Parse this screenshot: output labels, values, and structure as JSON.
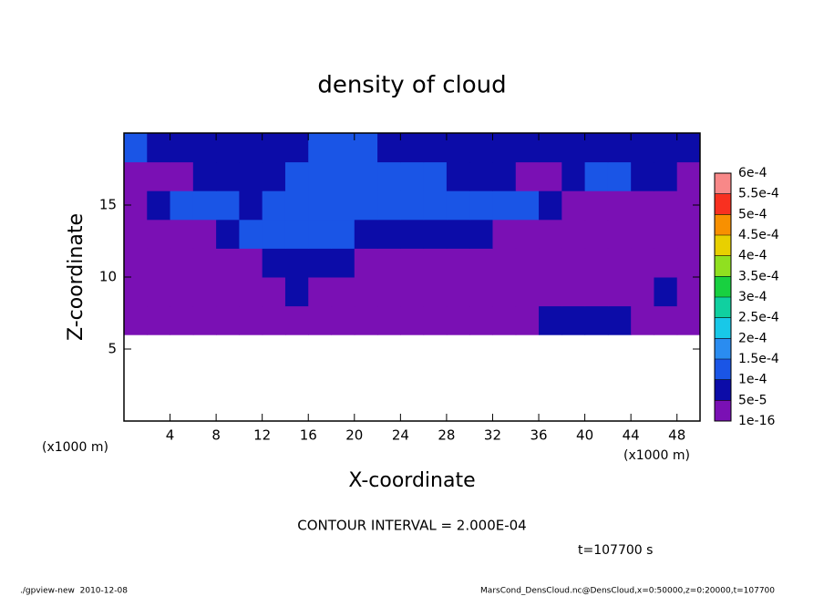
{
  "chart_data": {
    "type": "contour",
    "title": "density of cloud",
    "xlabel": "X-coordinate",
    "ylabel": "Z-coordinate",
    "x_unit": "(x1000 m)",
    "y_unit": "(x1000 m)",
    "annotation": "CONTOUR INTERVAL = 2.000E-04",
    "time_label": "t=107700 s",
    "footer_left": "./gpview-new  2010-12-08",
    "footer_right": "MarsCond_DensCloud.nc@DensCloud,x=0:50000,z=0:20000,t=107700",
    "xlim": [
      0,
      50
    ],
    "ylim": [
      0,
      20
    ],
    "xticks": [
      4,
      8,
      12,
      16,
      20,
      24,
      28,
      32,
      36,
      40,
      44,
      48
    ],
    "yticks": [
      5,
      10,
      15
    ],
    "x": [
      1,
      3,
      5,
      7,
      9,
      11,
      13,
      15,
      17,
      19,
      21,
      23,
      25,
      27,
      29,
      31,
      33,
      35,
      37,
      39,
      41,
      43,
      45,
      47,
      49
    ],
    "y": [
      1,
      3,
      5,
      7,
      9,
      11,
      13,
      15,
      17,
      19
    ],
    "z": [
      [
        null,
        null,
        null,
        null,
        null,
        null,
        null,
        null,
        null,
        null,
        null,
        null,
        null,
        null,
        null,
        null,
        null,
        null,
        null,
        null,
        null,
        null,
        null,
        null,
        null
      ],
      [
        null,
        null,
        null,
        null,
        null,
        null,
        null,
        null,
        null,
        null,
        null,
        null,
        null,
        null,
        null,
        null,
        null,
        null,
        null,
        null,
        null,
        null,
        null,
        null,
        null
      ],
      [
        null,
        null,
        null,
        null,
        null,
        null,
        null,
        null,
        null,
        null,
        null,
        null,
        null,
        null,
        null,
        null,
        null,
        null,
        null,
        null,
        null,
        null,
        null,
        null,
        null
      ],
      [
        2e-05,
        2e-05,
        2e-05,
        2e-05,
        2e-05,
        2e-05,
        2e-05,
        2e-05,
        2e-05,
        2e-05,
        2e-05,
        2e-05,
        2e-05,
        2e-05,
        2e-05,
        2e-05,
        2e-05,
        2e-05,
        7e-05,
        7e-05,
        7e-05,
        7e-05,
        2e-05,
        2e-05,
        2e-05
      ],
      [
        2e-05,
        2e-05,
        2e-05,
        2e-05,
        2e-05,
        2e-05,
        2e-05,
        7e-05,
        2e-05,
        2e-05,
        2e-05,
        2e-05,
        2e-05,
        2e-05,
        2e-05,
        2e-05,
        2e-05,
        2e-05,
        2e-05,
        2e-05,
        2e-05,
        2e-05,
        2e-05,
        7e-05,
        2e-05
      ],
      [
        2e-05,
        2e-05,
        2e-05,
        2e-05,
        2e-05,
        2e-05,
        7e-05,
        7e-05,
        7e-05,
        7e-05,
        2e-05,
        2e-05,
        2e-05,
        2e-05,
        2e-05,
        2e-05,
        2e-05,
        2e-05,
        2e-05,
        2e-05,
        2e-05,
        2e-05,
        2e-05,
        2e-05,
        2e-05
      ],
      [
        2e-05,
        2e-05,
        2e-05,
        2e-05,
        7e-05,
        0.00012,
        0.00012,
        0.00012,
        0.00012,
        0.00012,
        7e-05,
        7e-05,
        7e-05,
        7e-05,
        7e-05,
        7e-05,
        2e-05,
        2e-05,
        2e-05,
        2e-05,
        2e-05,
        2e-05,
        2e-05,
        2e-05,
        2e-05
      ],
      [
        2e-05,
        7e-05,
        0.00012,
        0.00012,
        0.00012,
        7e-05,
        0.00012,
        0.00012,
        0.00012,
        0.00012,
        0.00012,
        0.00012,
        0.00012,
        0.00012,
        0.00012,
        0.00012,
        0.00012,
        0.00012,
        7e-05,
        2e-05,
        2e-05,
        2e-05,
        2e-05,
        2e-05,
        2e-05
      ],
      [
        2e-05,
        2e-05,
        2e-05,
        7e-05,
        7e-05,
        7e-05,
        7e-05,
        0.00012,
        0.00012,
        0.00012,
        0.00012,
        0.00012,
        0.00012,
        0.00012,
        7e-05,
        7e-05,
        7e-05,
        2e-05,
        2e-05,
        7e-05,
        0.00012,
        0.00012,
        7e-05,
        7e-05,
        2e-05
      ],
      [
        0.00012,
        7e-05,
        7e-05,
        7e-05,
        7e-05,
        7e-05,
        7e-05,
        7e-05,
        0.00012,
        0.00012,
        0.00012,
        7e-05,
        7e-05,
        7e-05,
        7e-05,
        7e-05,
        7e-05,
        7e-05,
        7e-05,
        7e-05,
        7e-05,
        7e-05,
        7e-05,
        7e-05,
        7e-05
      ]
    ],
    "levels": [
      {
        "value": 1e-16,
        "label": "1e-16"
      },
      {
        "value": 5e-05,
        "label": "5e-5"
      },
      {
        "value": 0.0001,
        "label": "1e-4"
      },
      {
        "value": 0.00015,
        "label": "1.5e-4"
      },
      {
        "value": 0.0002,
        "label": "2e-4"
      },
      {
        "value": 0.00025,
        "label": "2.5e-4"
      },
      {
        "value": 0.0003,
        "label": "3e-4"
      },
      {
        "value": 0.00035,
        "label": "3.5e-4"
      },
      {
        "value": 0.0004,
        "label": "4e-4"
      },
      {
        "value": 0.00045,
        "label": "4.5e-4"
      },
      {
        "value": 0.0005,
        "label": "5e-4"
      },
      {
        "value": 0.00055,
        "label": "5.5e-4"
      },
      {
        "value": 0.0006,
        "label": "6e-4"
      }
    ],
    "colors": [
      "#7a10b4",
      "#0c0ca8",
      "#1a55e6",
      "#2a8cf0",
      "#18c8e8",
      "#10d0a0",
      "#18d040",
      "#90e020",
      "#e8d000",
      "#f89000",
      "#f83020",
      "#f88888"
    ]
  }
}
